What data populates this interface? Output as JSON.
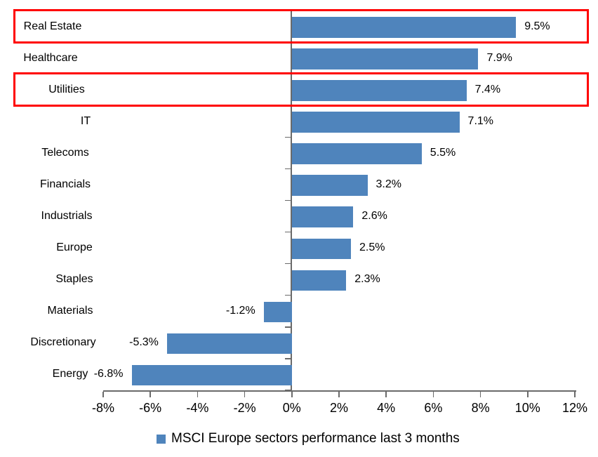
{
  "chart_data": {
    "type": "bar",
    "orientation": "horizontal",
    "title": "",
    "categories": [
      "Real Estate",
      "Healthcare",
      "Utilities",
      "IT",
      "Telecoms",
      "Financials",
      "Industrials",
      "Europe",
      "Staples",
      "Materials",
      "Discretionary",
      "Energy"
    ],
    "values": [
      9.5,
      7.9,
      7.4,
      7.1,
      5.5,
      3.2,
      2.6,
      2.5,
      2.3,
      -1.2,
      -5.3,
      -6.8
    ],
    "data_labels": [
      "9.5%",
      "7.9%",
      "7.4%",
      "7.1%",
      "5.5%",
      "3.2%",
      "2.6%",
      "2.5%",
      "2.3%",
      "-1.2%",
      "-5.3%",
      "-6.8%"
    ],
    "x_tick_labels": [
      "-8%",
      "-6%",
      "-4%",
      "-2%",
      "0%",
      "2%",
      "4%",
      "6%",
      "8%",
      "10%",
      "12%"
    ],
    "xlim": [
      -8,
      12
    ],
    "x_tick_step": 2,
    "grid": false,
    "legend": {
      "label": "MSCI Europe sectors performance last 3 months",
      "position": "bottom"
    },
    "bar_color": "#4F84BC",
    "axis_color": "#6a6a6a",
    "text_color": "#000000",
    "highlight_color": "#FF0000",
    "highlighted_categories": [
      "Real Estate",
      "Utilities"
    ]
  }
}
